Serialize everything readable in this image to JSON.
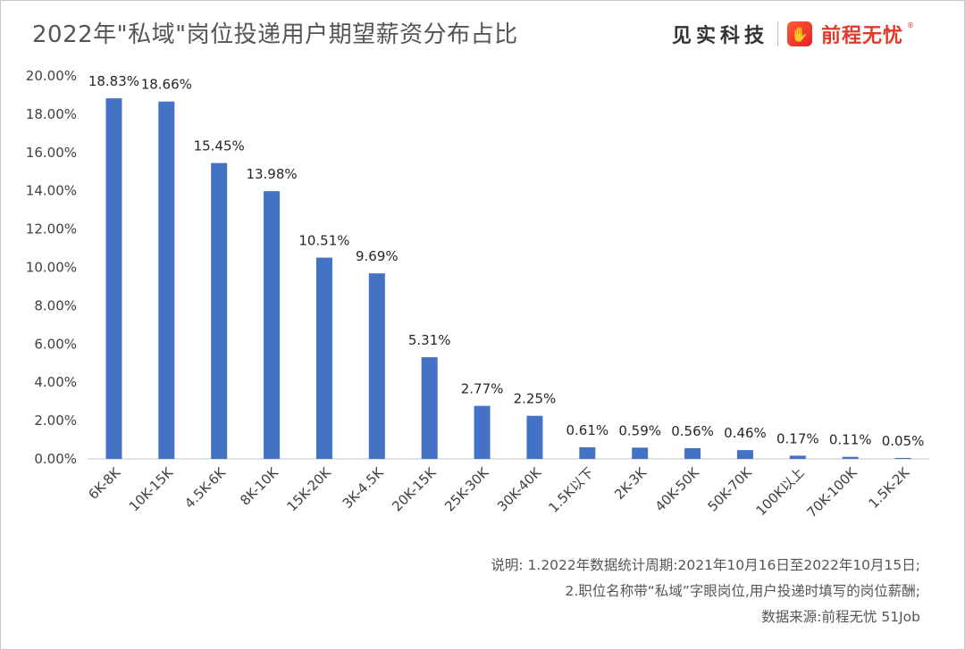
{
  "header": {
    "title": "2022年\"私域\"岗位投递用户期望薪资分布占比",
    "brand_cn": "见实科技",
    "brand_logo_glyph": "✋",
    "brand_name": "前程无忧"
  },
  "notes": {
    "line1": "说明: 1.2022年数据统计周期:2021年10月16日至2022年10月15日;",
    "line2": "2.职位名称带“私域”字眼岗位,用户投递时填写的岗位薪酬;",
    "source": "数据来源:前程无忧 51Job"
  },
  "colors": {
    "bar": "#4472c4",
    "axis": "#d9d9d9",
    "text": "#404040",
    "brand": "#e23a2a"
  },
  "chart_data": {
    "type": "bar",
    "title": "2022年\"私域\"岗位投递用户期望薪资分布占比",
    "xlabel": "",
    "ylabel": "",
    "ylim": [
      0,
      20
    ],
    "yticks": [
      "0.00%",
      "2.00%",
      "4.00%",
      "6.00%",
      "8.00%",
      "10.00%",
      "12.00%",
      "14.00%",
      "16.00%",
      "18.00%",
      "20.00%"
    ],
    "grid": false,
    "categories": [
      "6K-8K",
      "10K-15K",
      "4.5K-6K",
      "8K-10K",
      "15K-20K",
      "3K-4.5K",
      "20K-15K",
      "25K-30K",
      "30K-40K",
      "1.5K以下",
      "2K-3K",
      "40K-50K",
      "50K-70K",
      "100K以上",
      "70K-100K",
      "1.5K-2K"
    ],
    "values": [
      18.83,
      18.66,
      15.45,
      13.98,
      10.51,
      9.69,
      5.31,
      2.77,
      2.25,
      0.61,
      0.59,
      0.56,
      0.46,
      0.17,
      0.11,
      0.05
    ],
    "data_labels": [
      "18.83%",
      "18.66%",
      "15.45%",
      "13.98%",
      "10.51%",
      "9.69%",
      "5.31%",
      "2.77%",
      "2.25%",
      "0.61%",
      "0.59%",
      "0.56%",
      "0.46%",
      "0.17%",
      "0.11%",
      "0.05%"
    ]
  }
}
